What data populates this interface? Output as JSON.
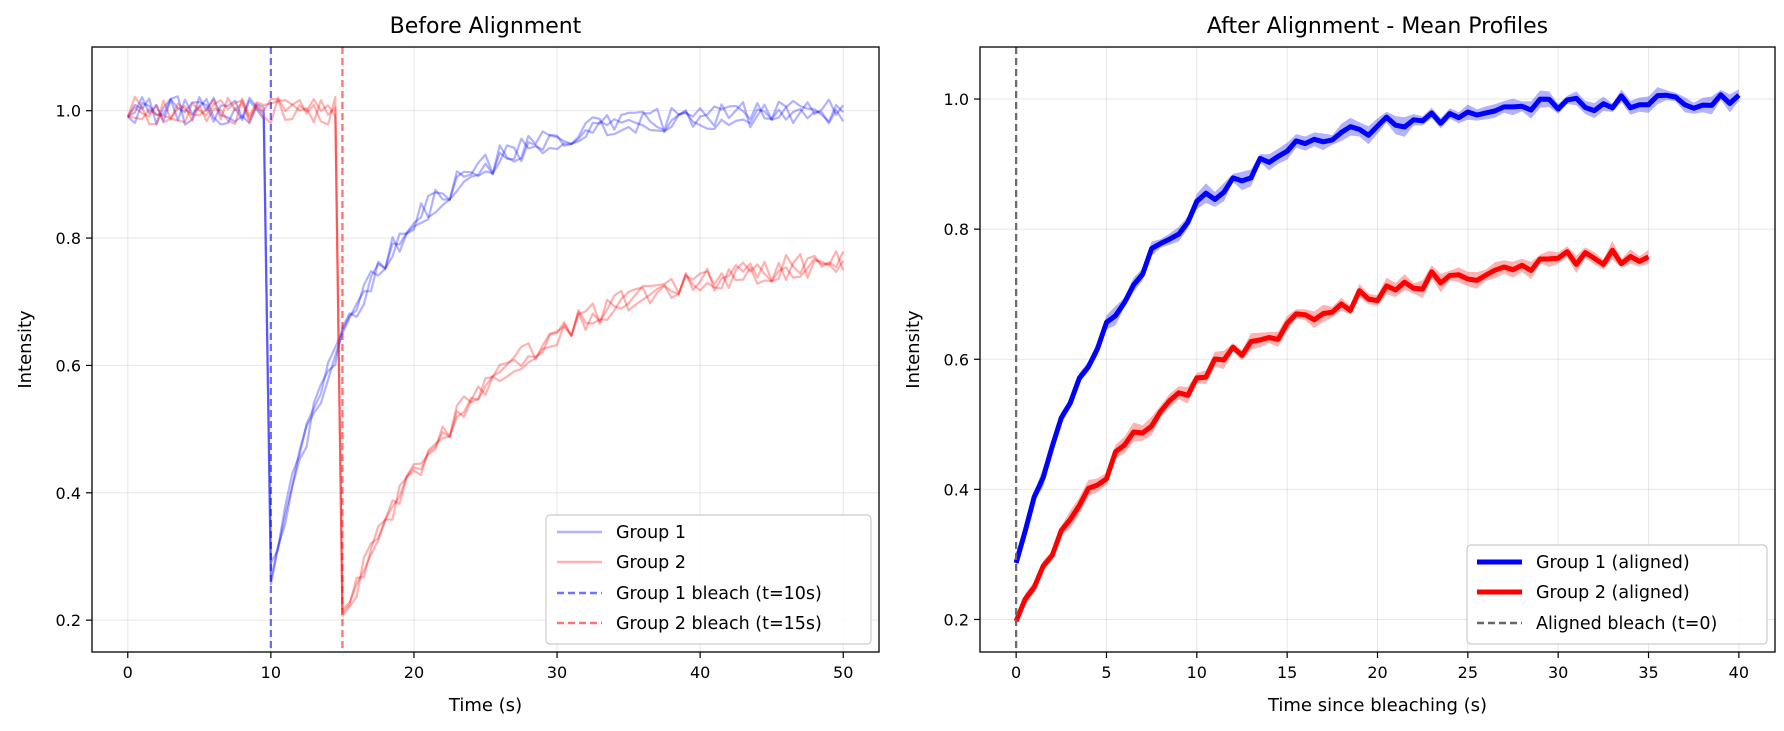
{
  "chart_data": [
    {
      "type": "line",
      "title": "Before Alignment",
      "xlabel": "Time (s)",
      "ylabel": "Intensity",
      "xlim": [
        -2.5,
        52.5
      ],
      "ylim": [
        0.15,
        1.1
      ],
      "xticks": [
        0,
        10,
        20,
        30,
        40,
        50
      ],
      "yticks": [
        0.2,
        0.4,
        0.6,
        0.8,
        1.0
      ],
      "grid": true,
      "legend_position": "lower-right",
      "legend": [
        "Group 1",
        "Group 2",
        "Group 1 bleach (t=10s)",
        "Group 2 bleach (t=15s)"
      ],
      "series": [
        {
          "group": 1,
          "color": "#0000ff",
          "alpha": 0.3,
          "recovery": {
            "start": 10,
            "end": 50,
            "a": 0.27,
            "b": 1.0,
            "tau": 7.0
          },
          "replicates": 3
        },
        {
          "group": 2,
          "color": "#ff0000",
          "alpha": 0.3,
          "recovery": {
            "start": 15,
            "end": 50,
            "a": 0.2,
            "b": 0.78,
            "tau": 10.0
          },
          "replicates": 3
        }
      ],
      "bleach_lines": [
        {
          "x": 10,
          "color": "#0000ff"
        },
        {
          "x": 15,
          "color": "#ff0000"
        }
      ]
    },
    {
      "type": "line",
      "title": "After Alignment - Mean Profiles",
      "xlabel": "Time since bleaching (s)",
      "ylabel": "Intensity",
      "xlim": [
        -2,
        42
      ],
      "ylim": [
        0.15,
        1.08
      ],
      "xticks": [
        0,
        5,
        10,
        15,
        20,
        25,
        30,
        35,
        40
      ],
      "yticks": [
        0.2,
        0.4,
        0.6,
        0.8,
        1.0
      ],
      "grid": true,
      "legend_position": "lower-right",
      "legend": [
        "Group 1 (aligned)",
        "Group 2 (aligned)",
        "Aligned bleach (t=0)"
      ],
      "series": [
        {
          "group": 1,
          "color": "#0000ff",
          "recovery": {
            "start": 0,
            "end": 40,
            "a": 0.29,
            "b": 1.0,
            "tau": 7.0
          }
        },
        {
          "group": 2,
          "color": "#ff0000",
          "recovery": {
            "start": 0,
            "end": 35,
            "a": 0.2,
            "b": 0.78,
            "tau": 10.0
          }
        }
      ],
      "bleach_lines": [
        {
          "x": 0,
          "color": "#666666"
        }
      ]
    }
  ]
}
